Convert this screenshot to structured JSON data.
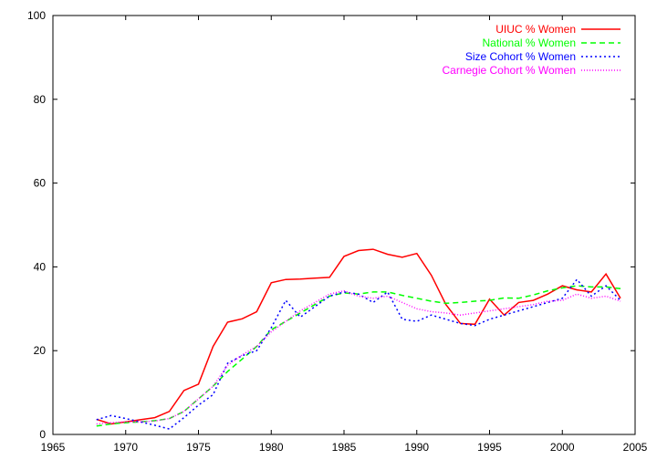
{
  "chart_data": {
    "type": "line",
    "title": "",
    "xlabel": "",
    "ylabel": "",
    "xlim": [
      1965,
      2005
    ],
    "ylim": [
      0,
      100
    ],
    "xticks": [
      1965,
      1970,
      1975,
      1980,
      1985,
      1990,
      1995,
      2000,
      2005
    ],
    "yticks": [
      0,
      20,
      40,
      60,
      80,
      100
    ],
    "grid": false,
    "legend_position": "top-right",
    "series": [
      {
        "name": "UIUC % Women",
        "color": "#ff0000",
        "dash": "solid",
        "points": [
          [
            1968,
            3.6
          ],
          [
            1969,
            2.5
          ],
          [
            1970,
            3.0
          ],
          [
            1971,
            3.5
          ],
          [
            1972,
            4.0
          ],
          [
            1973,
            5.5
          ],
          [
            1974,
            10.5
          ],
          [
            1975,
            12.0
          ],
          [
            1976,
            21.0
          ],
          [
            1977,
            26.8
          ],
          [
            1978,
            27.6
          ],
          [
            1979,
            29.3
          ],
          [
            1980,
            36.2
          ],
          [
            1981,
            37.0
          ],
          [
            1982,
            37.1
          ],
          [
            1983,
            37.3
          ],
          [
            1984,
            37.5
          ],
          [
            1985,
            42.5
          ],
          [
            1986,
            43.9
          ],
          [
            1987,
            44.2
          ],
          [
            1988,
            43.0
          ],
          [
            1989,
            42.3
          ],
          [
            1990,
            43.2
          ],
          [
            1991,
            38.0
          ],
          [
            1992,
            31.0
          ],
          [
            1993,
            26.5
          ],
          [
            1994,
            26.3
          ],
          [
            1995,
            32.3
          ],
          [
            1996,
            28.5
          ],
          [
            1997,
            31.5
          ],
          [
            1998,
            32.0
          ],
          [
            1999,
            33.5
          ],
          [
            2000,
            35.5
          ],
          [
            2001,
            34.5
          ],
          [
            2002,
            34.0
          ],
          [
            2003,
            38.3
          ],
          [
            2004,
            32.5
          ]
        ]
      },
      {
        "name": "National % Women",
        "color": "#00ff00",
        "dash": "dashed",
        "points": [
          [
            1968,
            2.0
          ],
          [
            1969,
            2.5
          ],
          [
            1970,
            2.8
          ],
          [
            1971,
            3.0
          ],
          [
            1972,
            3.3
          ],
          [
            1973,
            3.8
          ],
          [
            1974,
            5.5
          ],
          [
            1975,
            8.5
          ],
          [
            1976,
            11.5
          ],
          [
            1977,
            15.0
          ],
          [
            1978,
            18.0
          ],
          [
            1979,
            21.0
          ],
          [
            1980,
            25.0
          ],
          [
            1981,
            27.0
          ],
          [
            1982,
            29.0
          ],
          [
            1983,
            31.0
          ],
          [
            1984,
            33.0
          ],
          [
            1985,
            33.8
          ],
          [
            1986,
            33.5
          ],
          [
            1987,
            34.0
          ],
          [
            1988,
            34.0
          ],
          [
            1989,
            33.2
          ],
          [
            1990,
            32.5
          ],
          [
            1991,
            31.8
          ],
          [
            1992,
            31.3
          ],
          [
            1993,
            31.5
          ],
          [
            1994,
            31.8
          ],
          [
            1995,
            32.0
          ],
          [
            1996,
            32.6
          ],
          [
            1997,
            32.5
          ],
          [
            1998,
            33.3
          ],
          [
            1999,
            34.3
          ],
          [
            2000,
            35.0
          ],
          [
            2001,
            35.5
          ],
          [
            2002,
            35.2
          ],
          [
            2003,
            35.2
          ],
          [
            2004,
            34.8
          ]
        ]
      },
      {
        "name": "Size Cohort % Women",
        "color": "#0000ff",
        "dash": "dotted",
        "points": [
          [
            1968,
            3.5
          ],
          [
            1969,
            4.5
          ],
          [
            1970,
            3.8
          ],
          [
            1971,
            3.0
          ],
          [
            1972,
            2.2
          ],
          [
            1973,
            1.3
          ],
          [
            1974,
            4.0
          ],
          [
            1975,
            7.0
          ],
          [
            1976,
            9.5
          ],
          [
            1977,
            17.0
          ],
          [
            1978,
            18.8
          ],
          [
            1979,
            20.0
          ],
          [
            1980,
            25.5
          ],
          [
            1981,
            32.0
          ],
          [
            1982,
            28.0
          ],
          [
            1983,
            30.5
          ],
          [
            1984,
            33.0
          ],
          [
            1985,
            34.0
          ],
          [
            1986,
            33.5
          ],
          [
            1987,
            31.5
          ],
          [
            1988,
            34.0
          ],
          [
            1989,
            27.5
          ],
          [
            1990,
            27.0
          ],
          [
            1991,
            28.5
          ],
          [
            1992,
            27.5
          ],
          [
            1993,
            26.5
          ],
          [
            1994,
            26.0
          ],
          [
            1995,
            27.5
          ],
          [
            1996,
            28.5
          ],
          [
            1997,
            29.5
          ],
          [
            1998,
            30.5
          ],
          [
            1999,
            31.5
          ],
          [
            2000,
            32.5
          ],
          [
            2001,
            37.0
          ],
          [
            2002,
            33.0
          ],
          [
            2003,
            35.5
          ],
          [
            2004,
            32.0
          ]
        ]
      },
      {
        "name": "Carnegie Cohort % Women",
        "color": "#ff00ff",
        "dash": "dotted-fine",
        "points": [
          [
            1968,
            2.5
          ],
          [
            1969,
            2.8
          ],
          [
            1970,
            3.0
          ],
          [
            1971,
            3.0
          ],
          [
            1972,
            3.2
          ],
          [
            1973,
            3.8
          ],
          [
            1974,
            5.5
          ],
          [
            1975,
            8.5
          ],
          [
            1976,
            11.5
          ],
          [
            1977,
            16.5
          ],
          [
            1978,
            19.0
          ],
          [
            1979,
            21.0
          ],
          [
            1980,
            24.5
          ],
          [
            1981,
            27.0
          ],
          [
            1982,
            29.5
          ],
          [
            1983,
            31.5
          ],
          [
            1984,
            33.5
          ],
          [
            1985,
            34.3
          ],
          [
            1986,
            33.0
          ],
          [
            1987,
            32.5
          ],
          [
            1988,
            33.0
          ],
          [
            1989,
            31.5
          ],
          [
            1990,
            30.0
          ],
          [
            1991,
            29.3
          ],
          [
            1992,
            29.0
          ],
          [
            1993,
            28.5
          ],
          [
            1994,
            29.0
          ],
          [
            1995,
            29.5
          ],
          [
            1996,
            30.0
          ],
          [
            1997,
            30.5
          ],
          [
            1998,
            31.0
          ],
          [
            1999,
            31.8
          ],
          [
            2000,
            32.0
          ],
          [
            2001,
            33.5
          ],
          [
            2002,
            32.5
          ],
          [
            2003,
            33.0
          ],
          [
            2004,
            31.8
          ]
        ]
      }
    ]
  }
}
